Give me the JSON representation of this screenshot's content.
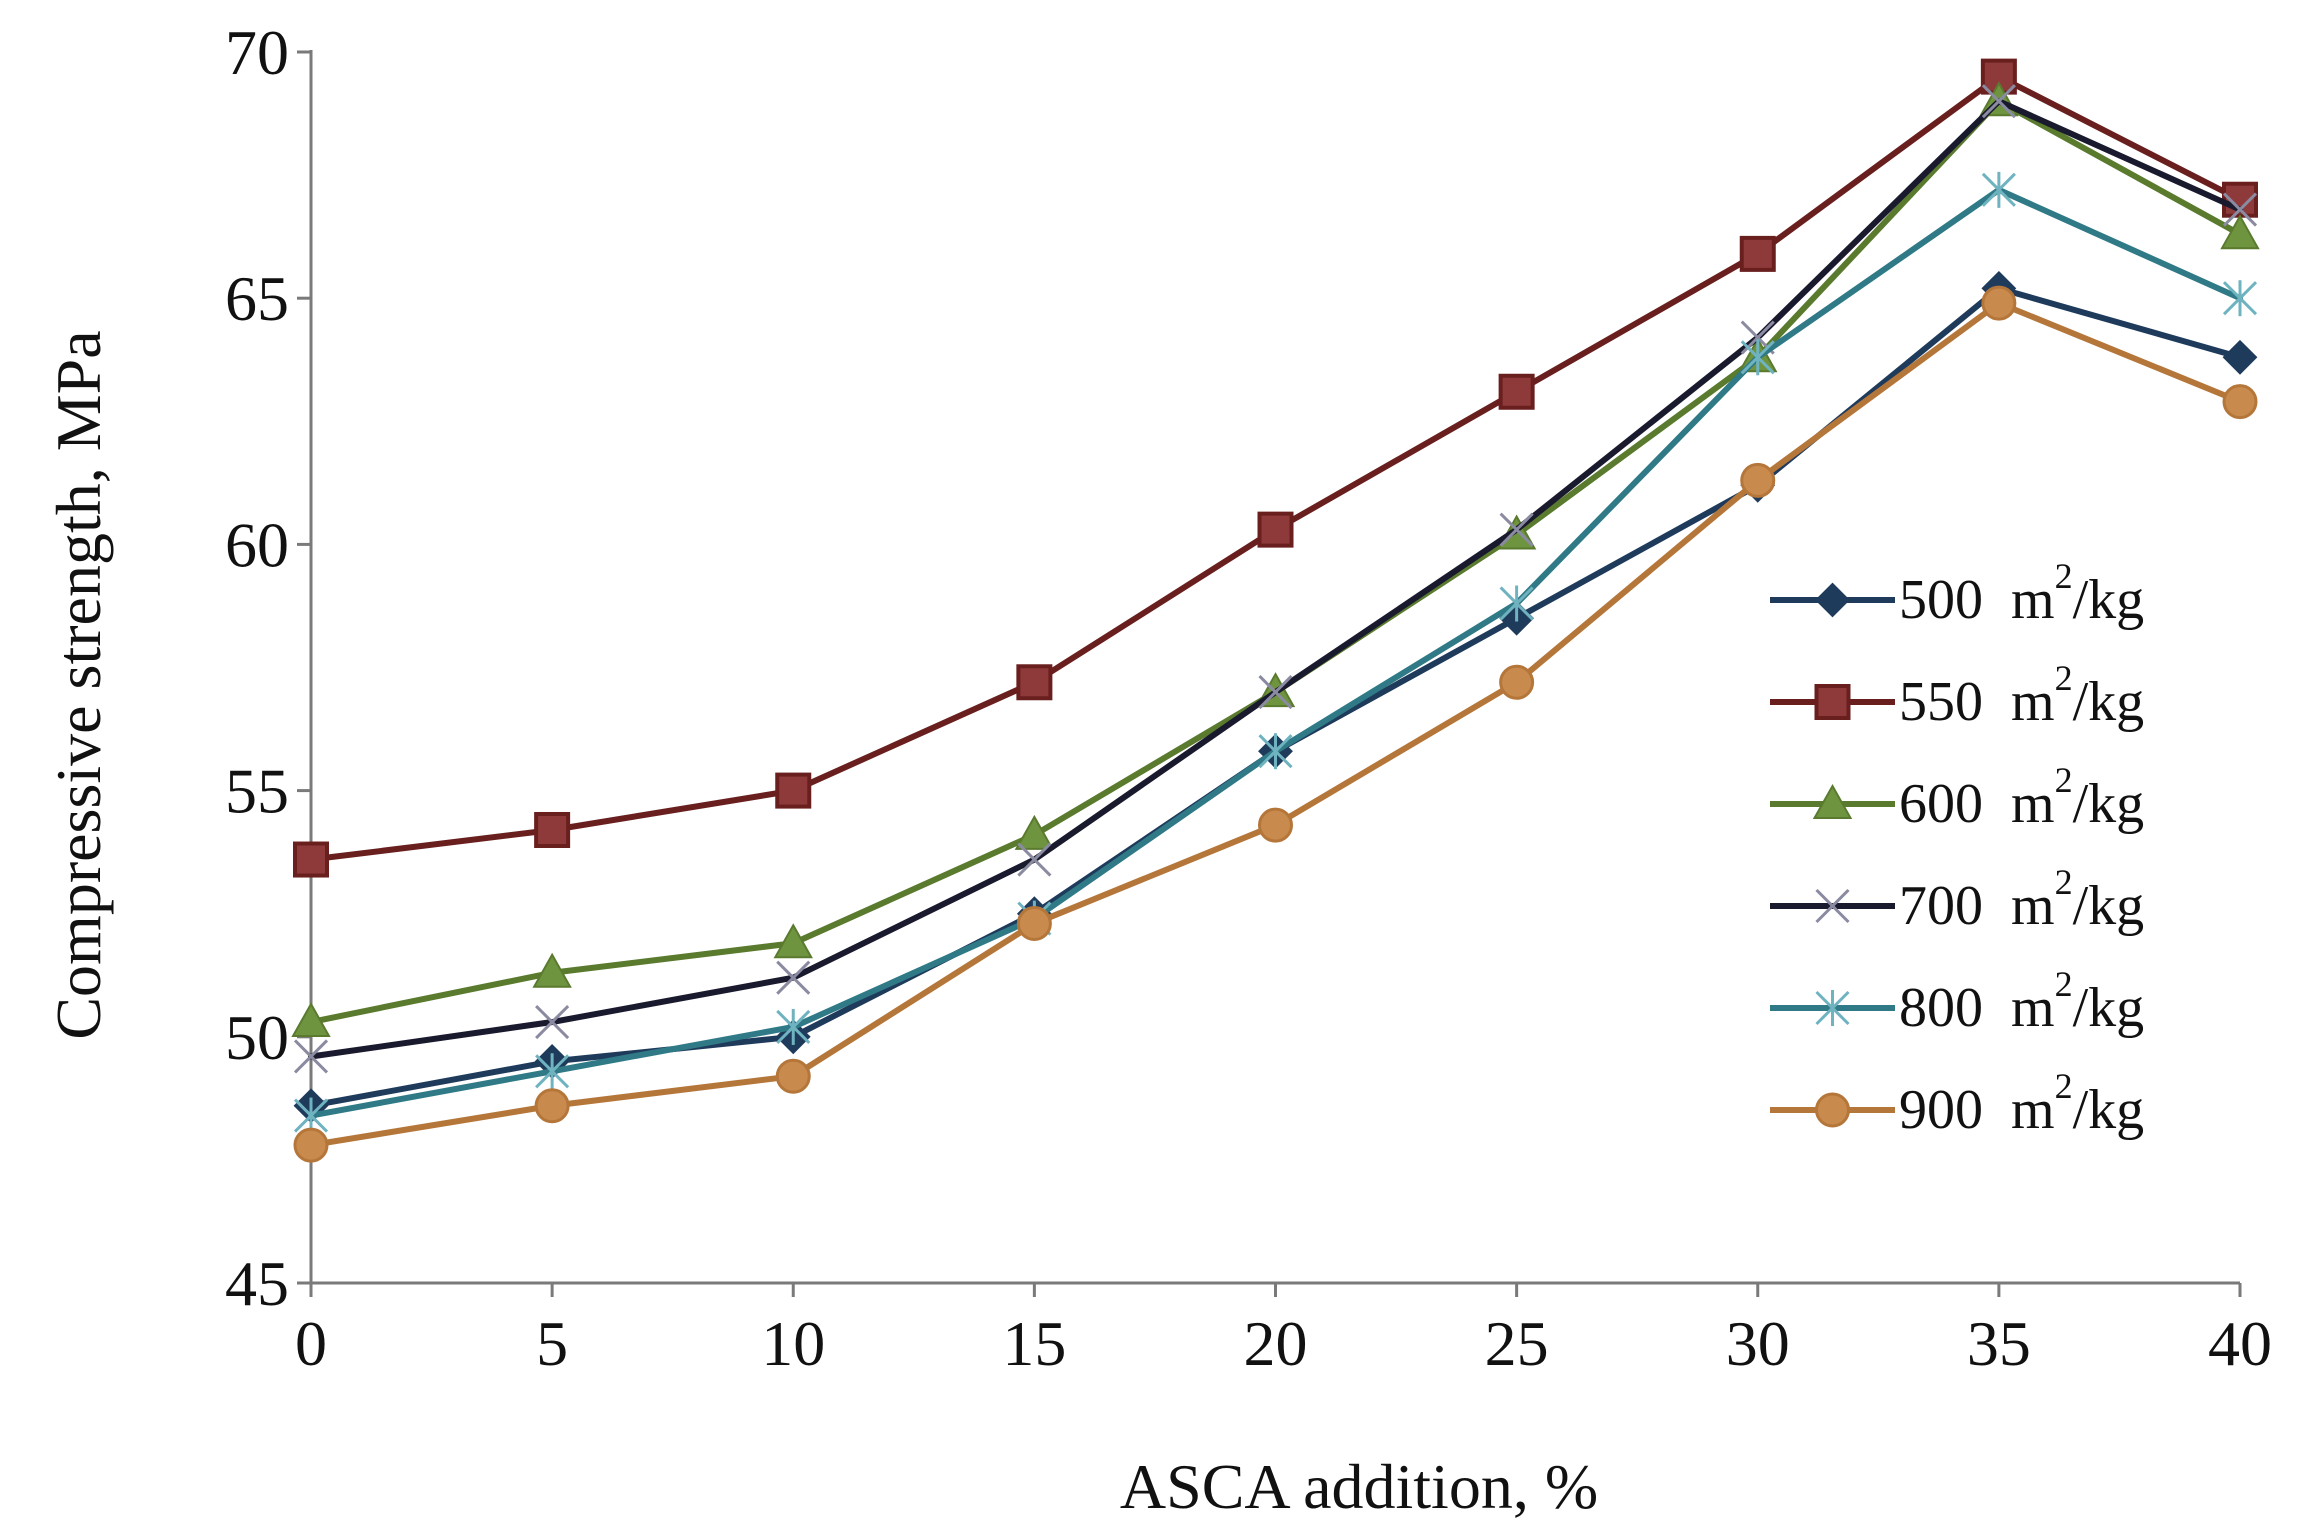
{
  "chart_data": {
    "type": "line",
    "title": "",
    "xlabel": "ASCA addition, %",
    "ylabel": "Compressive strength, MPa",
    "xlim": [
      0,
      40
    ],
    "ylim": [
      45,
      70
    ],
    "x": [
      0,
      5,
      10,
      15,
      20,
      25,
      30,
      35,
      40
    ],
    "xticks": [
      "0",
      "5",
      "10",
      "15",
      "20",
      "25",
      "30",
      "35",
      "40"
    ],
    "yticks": [
      "45",
      "50",
      "55",
      "60",
      "65",
      "70"
    ],
    "grid": false,
    "legend_position": "right",
    "legend_unit_base": "m",
    "legend_unit_sup": "2",
    "legend_unit_tail": "/kg",
    "series": [
      {
        "name": "500",
        "marker": "diamond",
        "color": "#1F3B5C",
        "values": [
          48.6,
          49.5,
          50.0,
          52.5,
          55.8,
          58.5,
          61.2,
          65.2,
          63.8
        ]
      },
      {
        "name": "550",
        "marker": "square",
        "color": "#6A1F1F",
        "values": [
          53.6,
          54.2,
          55.0,
          57.2,
          60.3,
          63.1,
          65.9,
          69.5,
          67.0
        ]
      },
      {
        "name": "600",
        "marker": "triangle",
        "color": "#5A7A2E",
        "values": [
          50.3,
          51.3,
          51.9,
          54.1,
          57.0,
          60.2,
          63.8,
          69.0,
          66.3
        ]
      },
      {
        "name": "700",
        "marker": "x",
        "color": "#1A1A2E",
        "values": [
          49.6,
          50.3,
          51.2,
          53.6,
          57.0,
          60.3,
          64.2,
          69.0,
          66.8
        ]
      },
      {
        "name": "800",
        "marker": "asterisk",
        "color": "#2F7A86",
        "values": [
          48.4,
          49.3,
          50.2,
          52.4,
          55.8,
          58.8,
          63.8,
          67.2,
          65.0
        ]
      },
      {
        "name": "900",
        "marker": "circle",
        "color": "#B5763A",
        "values": [
          47.8,
          48.6,
          49.2,
          52.3,
          54.3,
          57.2,
          61.3,
          64.9,
          62.9
        ]
      }
    ]
  }
}
